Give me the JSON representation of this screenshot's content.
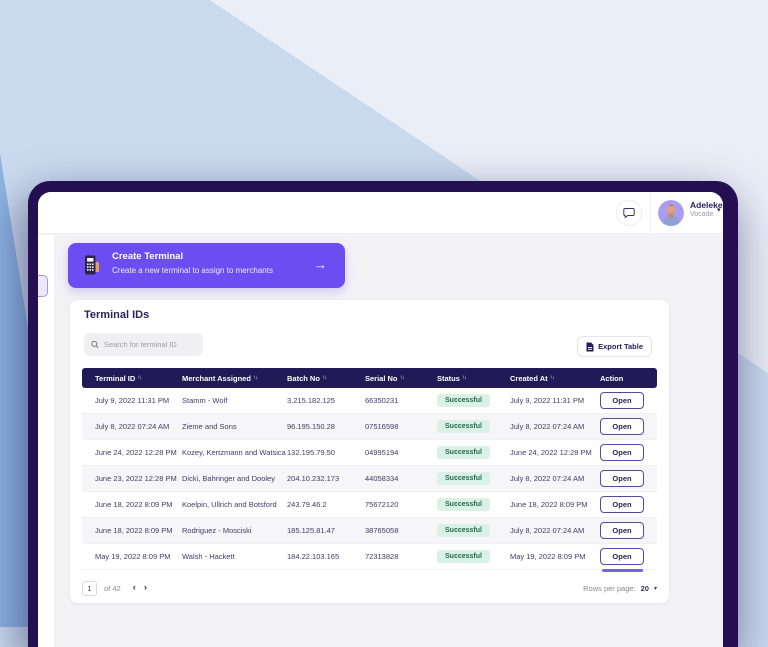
{
  "topbar": {
    "user_name": "Adeleke",
    "user_org": "Vocade",
    "caret": "▾"
  },
  "banner": {
    "title": "Create Terminal",
    "subtitle": "Create a new terminal to assign to merchants",
    "arrow": "→"
  },
  "panel": {
    "title": "Terminal IDs",
    "search_placeholder": "Search for terminal ID",
    "export_label": "Export Table"
  },
  "table": {
    "sort_glyph": "↑↓",
    "columns": [
      {
        "label": "Terminal ID",
        "sort": true
      },
      {
        "label": "Merchant Assigned",
        "sort": true
      },
      {
        "label": "Batch No",
        "sort": true
      },
      {
        "label": "Serial No",
        "sort": true
      },
      {
        "label": "Status",
        "sort": true
      },
      {
        "label": "Created At",
        "sort": true
      },
      {
        "label": "Action",
        "sort": false
      }
    ],
    "rows": [
      {
        "terminal_id": "July 9, 2022 11:31 PM",
        "merchant": "Stamm - Wolf",
        "batch_no": "3.215.182.125",
        "serial_no": "66350231",
        "status": "Successful",
        "created_at": "July 9, 2022 11:31 PM",
        "action": "Open"
      },
      {
        "terminal_id": "July 8, 2022 07:24 AM",
        "merchant": "Zieme and Sons",
        "batch_no": "96.195.150.28",
        "serial_no": "07516598",
        "status": "Successful",
        "created_at": "July 8, 2022 07:24 AM",
        "action": "Open"
      },
      {
        "terminal_id": "June 24, 2022 12:28 PM",
        "merchant": "Kozey, Kertzmann and Watsica",
        "batch_no": "132.195.79.50",
        "serial_no": "04995194",
        "status": "Successful",
        "created_at": "June 24, 2022 12:28 PM",
        "action": "Open"
      },
      {
        "terminal_id": "June 23, 2022 12:28 PM",
        "merchant": "Dicki, Bahringer and Dooley",
        "batch_no": "204.10.232.173",
        "serial_no": "44058334",
        "status": "Successful",
        "created_at": "July 8, 2022 07:24 AM",
        "action": "Open"
      },
      {
        "terminal_id": "June 18, 2022 8:09 PM",
        "merchant": "Koelpin, Ullrich and Botsford",
        "batch_no": "243.79.46.2",
        "serial_no": "75672120",
        "status": "Successful",
        "created_at": "June 18, 2022 8:09 PM",
        "action": "Open"
      },
      {
        "terminal_id": "June 18, 2022 8:09 PM",
        "merchant": "Rodriguez - Mosciski",
        "batch_no": "185.125.81.47",
        "serial_no": "38765058",
        "status": "Successful",
        "created_at": "July 8, 2022 07:24 AM",
        "action": "Open"
      },
      {
        "terminal_id": "May 19, 2022 8:09 PM",
        "merchant": "Walsh - Hackett",
        "batch_no": "184.22.103.165",
        "serial_no": "72313828",
        "status": "Successful",
        "created_at": "May 19, 2022 8:09 PM",
        "action": "Open"
      }
    ]
  },
  "pagination": {
    "page": "1",
    "total_label": "of 42",
    "prev": "‹",
    "next": "›",
    "rows_per_page_label": "Rows per page:",
    "rows_per_page_value": "20",
    "caret": "▾"
  },
  "colors": {
    "accent_purple": "#6b4df2",
    "frame_navy": "#250e52",
    "table_header_navy": "#211a56",
    "status_badge_bg": "#d9f1e6",
    "status_badge_text": "#226a50",
    "background_blue": "#c9daee"
  }
}
